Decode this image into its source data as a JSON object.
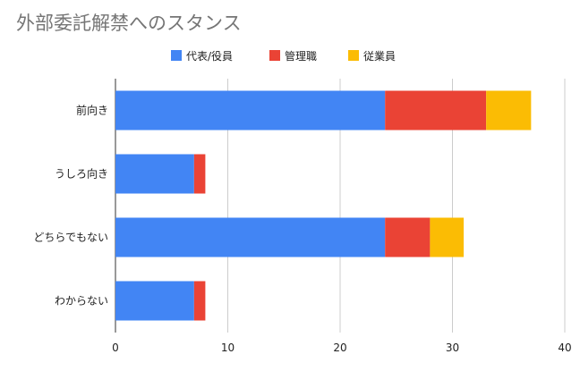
{
  "chart_data": {
    "type": "bar",
    "orientation": "horizontal",
    "stacked": true,
    "title": "外部委託解禁へのスタンス",
    "categories": [
      "前向き",
      "うしろ向き",
      "どちらでもない",
      "わからない"
    ],
    "series": [
      {
        "name": "代表/役員",
        "color": "#4285f4",
        "values": [
          24,
          7,
          24,
          7
        ]
      },
      {
        "name": "管理職",
        "color": "#ea4335",
        "values": [
          9,
          1,
          4,
          1
        ]
      },
      {
        "name": "従業員",
        "color": "#fbbc04",
        "values": [
          4,
          0,
          3,
          0
        ]
      }
    ],
    "xlim": [
      0,
      40
    ],
    "xticks": [
      0,
      10,
      20,
      30,
      40
    ],
    "grid": true,
    "legend": "top"
  }
}
